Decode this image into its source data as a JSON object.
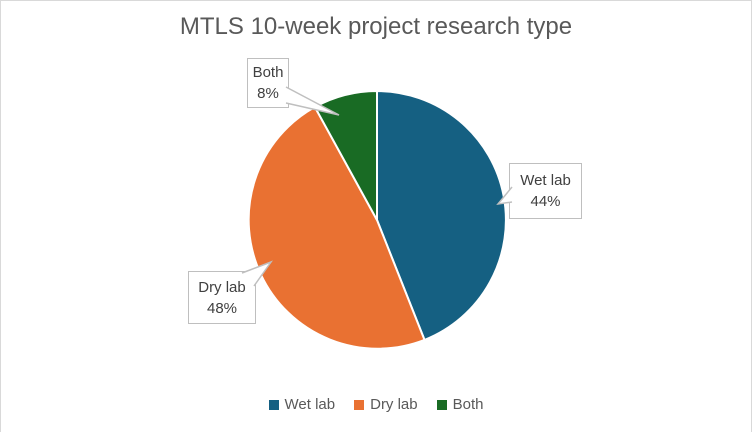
{
  "chart_data": {
    "type": "pie",
    "title": "MTLS 10-week project research type",
    "categories": [
      "Wet lab",
      "Dry lab",
      "Both"
    ],
    "values": [
      44,
      48,
      8
    ],
    "unit": "%",
    "colors": [
      "#156082",
      "#E97132",
      "#196B24"
    ],
    "start_angle_deg": 0,
    "direction": "clockwise",
    "legend_position": "bottom",
    "data_labels": [
      {
        "label": "Wet lab",
        "value_text": "44%"
      },
      {
        "label": "Dry lab",
        "value_text": "48%"
      },
      {
        "label": "Both",
        "value_text": "8%"
      }
    ]
  },
  "ui_colors": {
    "title_text": "#595959",
    "legend_text": "#595959",
    "data_label_text": "#404040",
    "callout_border": "#BFBFBF",
    "chart_border": "#D9D9D9",
    "slice_separator": "#FFFFFF"
  }
}
